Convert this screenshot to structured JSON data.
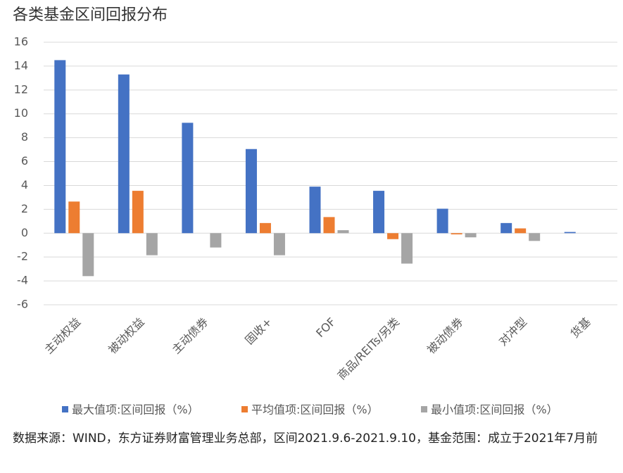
{
  "chart_data": {
    "type": "bar",
    "title": "各类基金区间回报分布",
    "categories": [
      "主动权益",
      "被动权益",
      "主动债券",
      "固收+",
      "FOF",
      "商品/REITs/另类",
      "被动债券",
      "对冲型",
      "货基"
    ],
    "series": [
      {
        "name": "最大值项:区间回报（%）",
        "color": "#4472c4",
        "values": [
          14.5,
          13.3,
          9.25,
          7.05,
          3.9,
          3.55,
          2.05,
          0.85,
          0.1
        ]
      },
      {
        "name": "平均值项:区间回报（%）",
        "color": "#ed7d31",
        "values": [
          2.65,
          3.55,
          null,
          0.85,
          1.35,
          -0.5,
          -0.1,
          0.4,
          null
        ]
      },
      {
        "name": "最小值项:区间回报（%）",
        "color": "#a5a5a5",
        "values": [
          -3.6,
          -1.85,
          -1.2,
          -1.85,
          0.25,
          -2.55,
          -0.35,
          -0.65,
          null
        ]
      }
    ],
    "ylim": [
      -6,
      16
    ],
    "yticks": [
      -6,
      -4,
      -2,
      0,
      2,
      4,
      6,
      8,
      10,
      12,
      14,
      16
    ],
    "grid": true,
    "legend": "bottom",
    "source": "数据来源：WIND，东方证券财富管理业务总部，区间2021.9.6-2021.9.10，基金范围：成立于2021年7月前"
  }
}
